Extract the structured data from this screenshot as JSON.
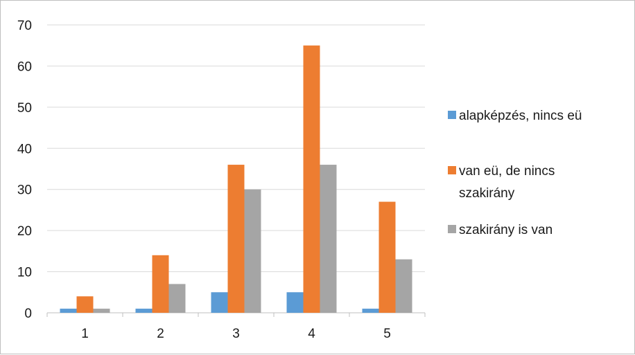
{
  "chart_data": {
    "type": "bar",
    "categories": [
      "1",
      "2",
      "3",
      "4",
      "5"
    ],
    "series": [
      {
        "name": "alapképzés, nincs eü",
        "color": "#5b9bd5",
        "values": [
          1,
          1,
          5,
          5,
          1
        ]
      },
      {
        "name": "van eü, de nincs szakirány",
        "color": "#ed7d31",
        "values": [
          4,
          14,
          36,
          65,
          27
        ]
      },
      {
        "name": "szakirány is van",
        "color": "#a5a5a5",
        "values": [
          1,
          7,
          30,
          36,
          13
        ]
      }
    ],
    "yticks": [
      0,
      10,
      20,
      30,
      40,
      50,
      60,
      70
    ],
    "ylim": [
      0,
      70
    ],
    "grid": true,
    "legend_position": "right",
    "title": "",
    "xlabel": "",
    "ylabel": ""
  }
}
